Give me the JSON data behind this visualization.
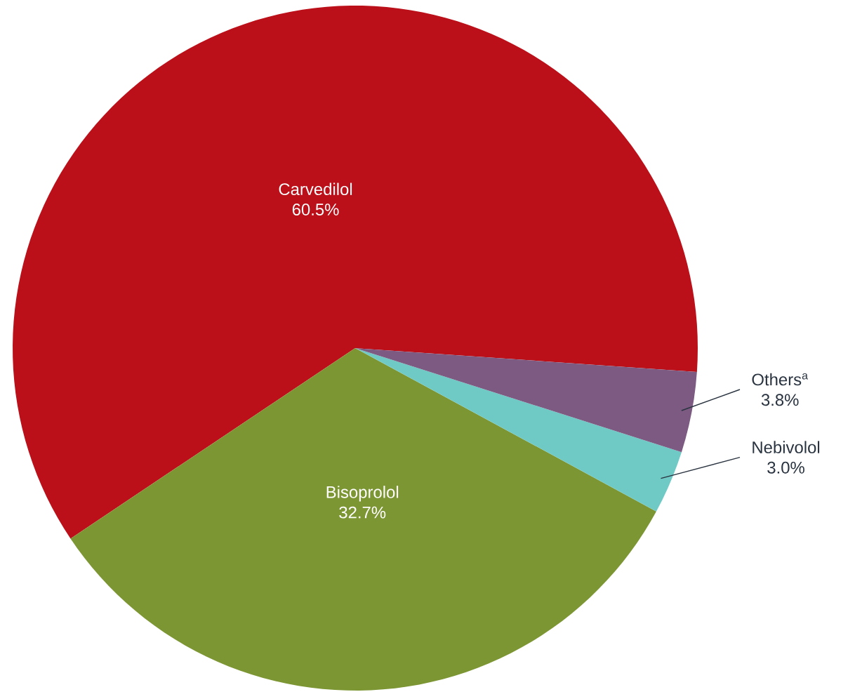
{
  "chart_data": {
    "type": "pie",
    "categories": [
      "Carvedilol",
      "Bisoprolol",
      "Nebivolol",
      "Others$^{a}$"
    ],
    "values": [
      60.5,
      32.7,
      3.0,
      3.8
    ],
    "value_labels": [
      "60.5%",
      "32.7%",
      "3.0%",
      "3.8%"
    ],
    "colors": [
      "#bb1019",
      "#7d9634",
      "#6fcac6",
      "#7c5a82"
    ]
  }
}
